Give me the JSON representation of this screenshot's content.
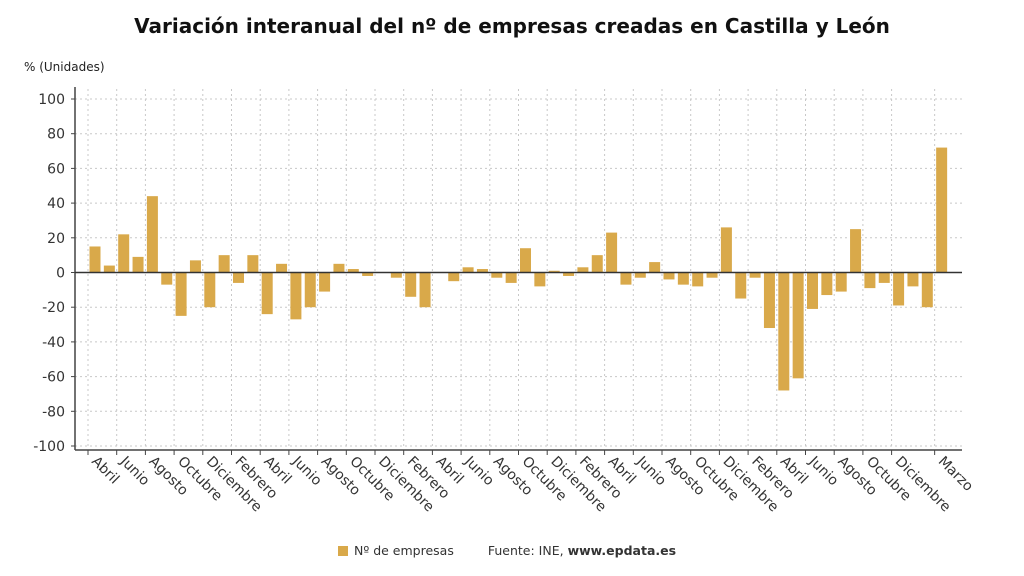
{
  "chart_data": {
    "type": "bar",
    "title": "Variación interanual del nº de empresas creadas en Castilla y León",
    "ylabel": "% (Unidades)",
    "xlabel": "",
    "ylim": [
      -100,
      100
    ],
    "yticks": [
      100,
      80,
      60,
      40,
      20,
      0,
      -20,
      -40,
      -60,
      -80,
      -100
    ],
    "grid": true,
    "legend": "bottom",
    "bar_color": "#d9a94a",
    "tick_labels": [
      {
        "index": 0,
        "label": "Abril"
      },
      {
        "index": 2,
        "label": "Junio"
      },
      {
        "index": 4,
        "label": "Agosto"
      },
      {
        "index": 6,
        "label": "Octubre"
      },
      {
        "index": 8,
        "label": "Diciembre"
      },
      {
        "index": 10,
        "label": "Febrero"
      },
      {
        "index": 12,
        "label": "Abril"
      },
      {
        "index": 14,
        "label": "Junio"
      },
      {
        "index": 16,
        "label": "Agosto"
      },
      {
        "index": 18,
        "label": "Octubre"
      },
      {
        "index": 20,
        "label": "Diciembre"
      },
      {
        "index": 22,
        "label": "Febrero"
      },
      {
        "index": 24,
        "label": "Abril"
      },
      {
        "index": 26,
        "label": "Junio"
      },
      {
        "index": 28,
        "label": "Agosto"
      },
      {
        "index": 30,
        "label": "Octubre"
      },
      {
        "index": 32,
        "label": "Diciembre"
      },
      {
        "index": 34,
        "label": "Febrero"
      },
      {
        "index": 36,
        "label": "Abril"
      },
      {
        "index": 38,
        "label": "Junio"
      },
      {
        "index": 40,
        "label": "Agosto"
      },
      {
        "index": 42,
        "label": "Octubre"
      },
      {
        "index": 44,
        "label": "Diciembre"
      },
      {
        "index": 46,
        "label": "Febrero"
      },
      {
        "index": 48,
        "label": "Abril"
      },
      {
        "index": 50,
        "label": "Junio"
      },
      {
        "index": 52,
        "label": "Agosto"
      },
      {
        "index": 54,
        "label": "Octubre"
      },
      {
        "index": 56,
        "label": "Diciembre"
      },
      {
        "index": 59,
        "label": "Marzo"
      }
    ],
    "series": [
      {
        "name": "Nº de empresas",
        "values": [
          15,
          4,
          22,
          9,
          44,
          -7,
          -25,
          7,
          -20,
          10,
          -6,
          10,
          -24,
          5,
          -27,
          -20,
          -11,
          5,
          2,
          -2,
          0,
          -3,
          -14,
          -20,
          0,
          -5,
          3,
          2,
          -3,
          -6,
          14,
          -8,
          1,
          -2,
          3,
          10,
          23,
          -7,
          -3,
          6,
          -4,
          -7,
          -8,
          -3,
          26,
          -15,
          -3,
          -32,
          -68,
          -61,
          -21,
          -13,
          -11,
          25,
          -9,
          -6,
          -19,
          -8,
          -20,
          72
        ]
      }
    ]
  },
  "source": {
    "prefix": "Fuente: INE, ",
    "site": "www.epdata.es"
  }
}
